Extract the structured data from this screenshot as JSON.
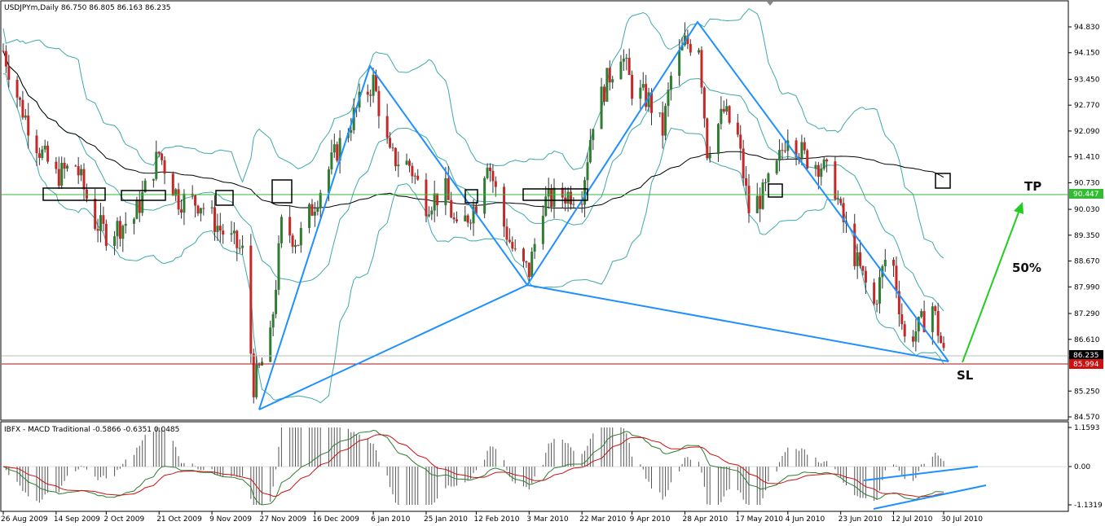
{
  "header": {
    "symbol_line": "USDJPYm,Daily  86.750 86.805 86.163 86.235",
    "indicator_line": "IBFX - MACD Traditional -0.5866 -0.6351 0.0485"
  },
  "price_axis": {
    "ticks": [
      "94.830",
      "94.150",
      "93.450",
      "92.770",
      "92.090",
      "91.410",
      "90.730",
      "90.030",
      "89.350",
      "88.670",
      "87.990",
      "87.290",
      "86.610",
      "85.250",
      "84.570"
    ],
    "current_price_tag": "86.235",
    "level_tag_green": "90.447",
    "level_tag_red": "85.994"
  },
  "macd_axis": {
    "ticks": [
      "1.1593",
      "0.00",
      "-1.1319"
    ]
  },
  "time_axis": {
    "labels": [
      "26 Aug 2009",
      "14 Sep 2009",
      "2 Oct 2009",
      "21 Oct 2009",
      "9 Nov 2009",
      "27 Nov 2009",
      "16 Dec 2009",
      "6 Jan 2010",
      "25 Jan 2010",
      "12 Feb 2010",
      "3 Mar 2010",
      "22 Mar 2010",
      "9 Apr 2010",
      "28 Apr 2010",
      "17 May 2010",
      "4 Jun 2010",
      "23 Jun 2010",
      "12 Jul 2010",
      "30 Jul 2010"
    ]
  },
  "annotations": {
    "tp": "TP",
    "sl": "SL",
    "pct": "50%"
  },
  "colors": {
    "bull_candle": "#2e7d32",
    "bear_candle": "#c62828",
    "bollinger": "#3fa9a9",
    "ma": "#000000",
    "pattern": "#1e90ff",
    "tp_arrow": "#22cc22",
    "tp_line": "#33bb33",
    "sl_line": "#aa1111",
    "macd_line": "#2e7d32",
    "signal_line": "#cc1111",
    "histogram": "#555555"
  },
  "chart_data": {
    "type": "candlestick",
    "symbol": "USDJPYm",
    "timeframe": "Daily",
    "ohlc_last": {
      "open": 86.75,
      "high": 86.805,
      "low": 86.163,
      "close": 86.235
    },
    "ylim": [
      84.57,
      95.2
    ],
    "levels": {
      "take_profit": 90.447,
      "stop_loss": 85.994,
      "current": 86.235
    },
    "pattern_points": [
      {
        "date": "24 Nov 2009",
        "price": 84.85
      },
      {
        "date": "6 Jan 2010",
        "price": 93.77
      },
      {
        "date": "3 Mar 2010",
        "price": 88.13
      },
      {
        "date": "30 Apr 2010",
        "price": 94.9
      },
      {
        "date": "30 Jul 2010",
        "price": 86.25
      }
    ],
    "close_path": [
      {
        "date": "26 Aug 2009",
        "price": 94.2
      },
      {
        "date": "1 Sep 2009",
        "price": 92.8
      },
      {
        "date": "8 Sep 2009",
        "price": 91.6
      },
      {
        "date": "14 Sep 2009",
        "price": 90.9
      },
      {
        "date": "21 Sep 2009",
        "price": 91.2
      },
      {
        "date": "28 Sep 2009",
        "price": 89.7
      },
      {
        "date": "2 Oct 2009",
        "price": 89.4
      },
      {
        "date": "12 Oct 2009",
        "price": 89.8
      },
      {
        "date": "21 Oct 2009",
        "price": 91.5
      },
      {
        "date": "28 Oct 2009",
        "price": 90.3
      },
      {
        "date": "5 Nov 2009",
        "price": 90.2
      },
      {
        "date": "12 Nov 2009",
        "price": 89.5
      },
      {
        "date": "20 Nov 2009",
        "price": 88.9
      },
      {
        "date": "24 Nov 2009",
        "price": 85.4
      },
      {
        "date": "30 Nov 2009",
        "price": 86.6
      },
      {
        "date": "4 Dec 2009",
        "price": 89.6
      },
      {
        "date": "10 Dec 2009",
        "price": 89.2
      },
      {
        "date": "17 Dec 2009",
        "price": 90.4
      },
      {
        "date": "24 Dec 2009",
        "price": 91.6
      },
      {
        "date": "1 Jan 2010",
        "price": 92.8
      },
      {
        "date": "6 Jan 2010",
        "price": 93.4
      },
      {
        "date": "12 Jan 2010",
        "price": 91.4
      },
      {
        "date": "19 Jan 2010",
        "price": 91.2
      },
      {
        "date": "25 Jan 2010",
        "price": 90.2
      },
      {
        "date": "1 Feb 2010",
        "price": 90.5
      },
      {
        "date": "5 Feb 2010",
        "price": 89.4
      },
      {
        "date": "12 Feb 2010",
        "price": 90.2
      },
      {
        "date": "16 Feb 2010",
        "price": 91.4
      },
      {
        "date": "22 Feb 2010",
        "price": 89.6
      },
      {
        "date": "27 Feb 2010",
        "price": 88.6
      },
      {
        "date": "3 Mar 2010",
        "price": 88.4
      },
      {
        "date": "8 Mar 2010",
        "price": 90.2
      },
      {
        "date": "15 Mar 2010",
        "price": 90.4
      },
      {
        "date": "22 Mar 2010",
        "price": 90.5
      },
      {
        "date": "26 Mar 2010",
        "price": 92.4
      },
      {
        "date": "31 Mar 2010",
        "price": 93.4
      },
      {
        "date": "5 Apr 2010",
        "price": 94.2
      },
      {
        "date": "9 Apr 2010",
        "price": 93.2
      },
      {
        "date": "15 Apr 2010",
        "price": 92.9
      },
      {
        "date": "20 Apr 2010",
        "price": 92.1
      },
      {
        "date": "23 Apr 2010",
        "price": 93.5
      },
      {
        "date": "28 Apr 2010",
        "price": 94.4
      },
      {
        "date": "3 May 2010",
        "price": 94.4
      },
      {
        "date": "6 May 2010",
        "price": 91.6
      },
      {
        "date": "12 May 2010",
        "price": 92.6
      },
      {
        "date": "17 May 2010",
        "price": 91.9
      },
      {
        "date": "21 May 2010",
        "price": 90.0
      },
      {
        "date": "26 May 2010",
        "price": 90.4
      },
      {
        "date": "31 May 2010",
        "price": 91.1
      },
      {
        "date": "4 Jun 2010",
        "price": 92.1
      },
      {
        "date": "10 Jun 2010",
        "price": 91.4
      },
      {
        "date": "16 Jun 2010",
        "price": 91.2
      },
      {
        "date": "21 Jun 2010",
        "price": 90.6
      },
      {
        "date": "23 Jun 2010",
        "price": 89.9
      },
      {
        "date": "29 Jun 2010",
        "price": 88.6
      },
      {
        "date": "5 Jul 2010",
        "price": 87.5
      },
      {
        "date": "9 Jul 2010",
        "price": 88.7
      },
      {
        "date": "12 Jul 2010",
        "price": 88.5
      },
      {
        "date": "16 Jul 2010",
        "price": 86.6
      },
      {
        "date": "21 Jul 2010",
        "price": 86.9
      },
      {
        "date": "26 Jul 2010",
        "price": 87.5
      },
      {
        "date": "30 Jul 2010",
        "price": 86.2
      }
    ],
    "macd": {
      "last": {
        "macd": -0.5866,
        "signal": -0.6351,
        "hist": 0.0485
      },
      "ylim": [
        -1.1319,
        1.1593
      ]
    }
  }
}
